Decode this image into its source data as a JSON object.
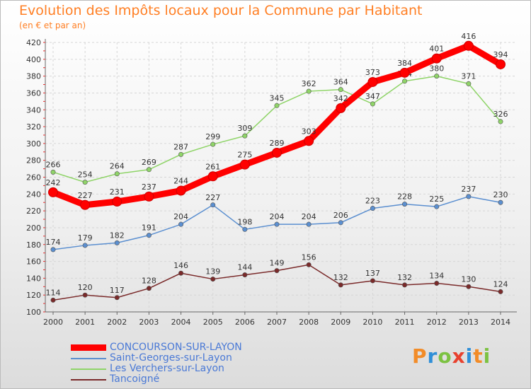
{
  "chart_data": {
    "type": "line",
    "title": "Evolution des Impôts locaux pour la Commune par Habitant",
    "subtitle": "(en € et par an)",
    "categories": [
      "2000",
      "2001",
      "2002",
      "2003",
      "2004",
      "2005",
      "2006",
      "2007",
      "2008",
      "2009",
      "2010",
      "2011",
      "2012",
      "2013",
      "2014"
    ],
    "ylim": [
      100,
      420
    ],
    "y_ticks": [
      100,
      120,
      140,
      160,
      180,
      200,
      220,
      240,
      260,
      280,
      300,
      320,
      340,
      360,
      380,
      400,
      420
    ],
    "grid": true,
    "legend_position": "bottom-left",
    "series": [
      {
        "name": "CONCOURSON-SUR-LAYON",
        "color": "#ff0000",
        "emphasis": true,
        "values": [
          242,
          227,
          231,
          237,
          244,
          261,
          275,
          289,
          303,
          342,
          373,
          384,
          401,
          416,
          394
        ]
      },
      {
        "name": "Saint-Georges-sur-Layon",
        "color": "#5b8fd0",
        "emphasis": false,
        "values": [
          174,
          179,
          182,
          191,
          204,
          227,
          198,
          204,
          204,
          206,
          223,
          228,
          225,
          237,
          230
        ]
      },
      {
        "name": "Les Verchers-sur-Layon",
        "color": "#8fd468",
        "emphasis": false,
        "values": [
          266,
          254,
          264,
          269,
          287,
          299,
          309,
          345,
          362,
          364,
          347,
          374,
          380,
          371,
          326
        ]
      },
      {
        "name": "Tancoigné",
        "color": "#7a2a2a",
        "emphasis": false,
        "values": [
          114,
          120,
          117,
          128,
          146,
          139,
          144,
          149,
          156,
          132,
          137,
          132,
          134,
          130,
          124
        ]
      }
    ]
  },
  "logo": {
    "letters": [
      "P",
      "r",
      "o",
      "x",
      "i",
      "t",
      "i"
    ],
    "colors": [
      "#f28c28",
      "#2f8fd8",
      "#7cc242",
      "#e8412e",
      "#2f8fd8",
      "#f28c28",
      "#7cc242"
    ]
  }
}
